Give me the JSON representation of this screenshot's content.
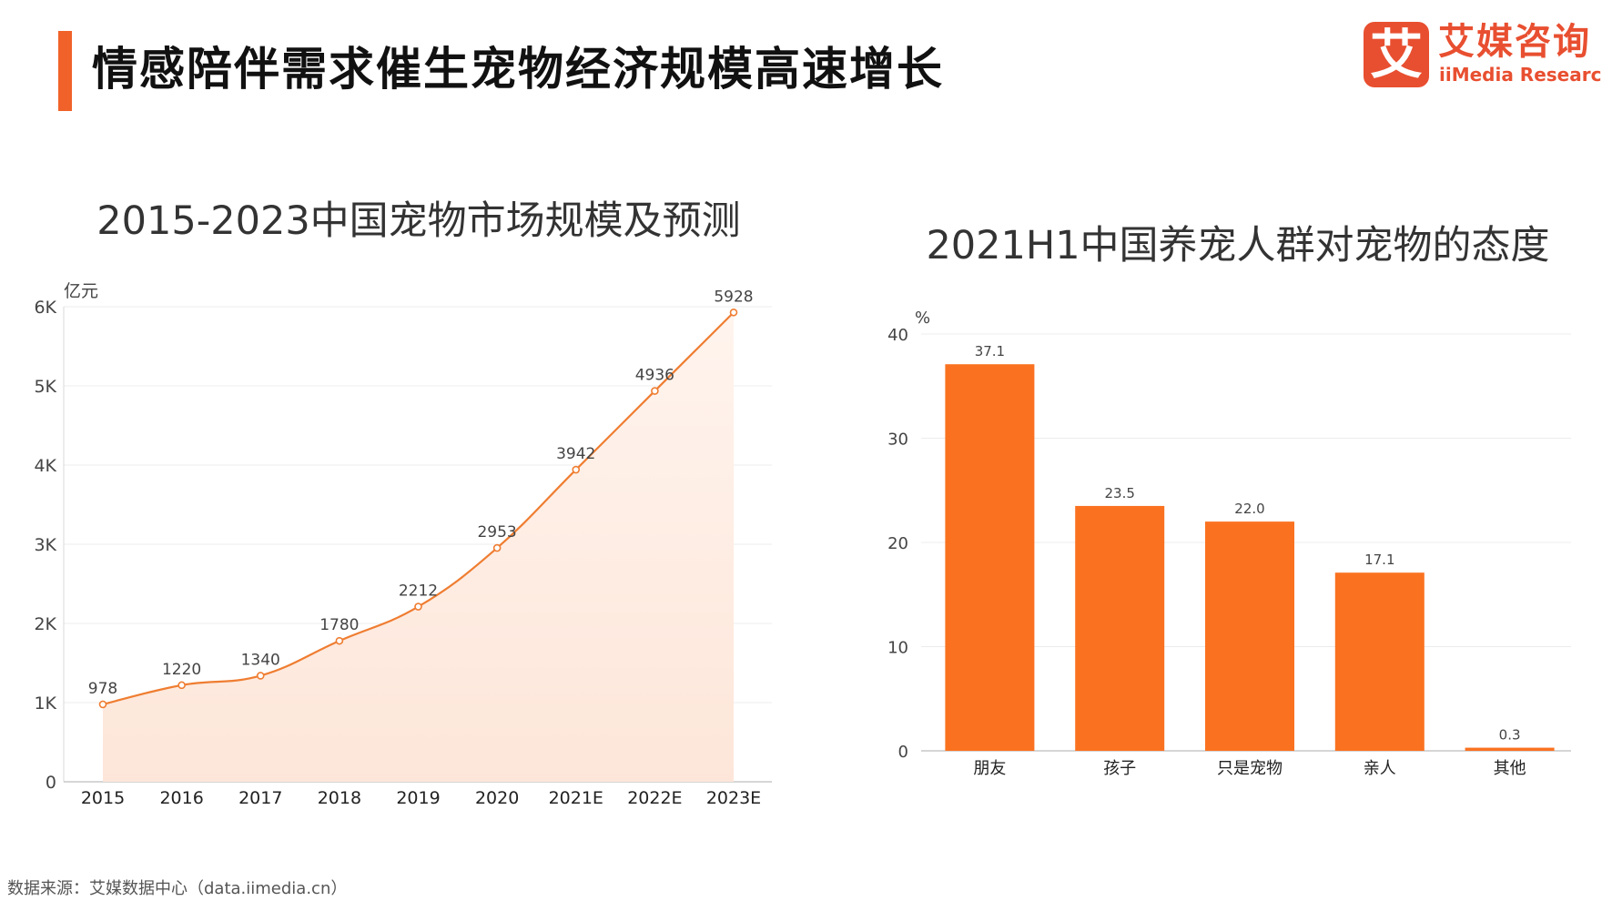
{
  "header": {
    "title": "情感陪伴需求催生宠物经济规模高速增长",
    "accent_color": "#f0622a"
  },
  "logo": {
    "mark": "艾",
    "cn": "艾媒咨询",
    "en": "iiMedia Research",
    "color": "#e84f30"
  },
  "chart_data": [
    {
      "type": "area",
      "title": "2015-2023中国宠物市场规模及预测",
      "ylabel": "亿元",
      "xlabel": "",
      "categories": [
        "2015",
        "2016",
        "2017",
        "2018",
        "2019",
        "2020",
        "2021E",
        "2022E",
        "2023E"
      ],
      "values": [
        978,
        1220,
        1340,
        1780,
        2212,
        2953,
        3942,
        4936,
        5928
      ],
      "data_labels": [
        "978",
        "1220",
        "1340",
        "1780",
        "2212",
        "2953",
        "3942",
        "4936",
        "5928"
      ],
      "ylim": [
        0,
        6000
      ],
      "yticks": [
        0,
        1000,
        2000,
        3000,
        4000,
        5000,
        6000
      ],
      "ytick_labels": [
        "0",
        "1K",
        "2K",
        "3K",
        "4K",
        "5K",
        "6K"
      ],
      "grid": true,
      "line_color": "#ef7d31",
      "fill_color": "#fde6d9"
    },
    {
      "type": "bar",
      "title": "2021H1中国养宠人群对宠物的态度",
      "ylabel": "%",
      "xlabel": "",
      "categories": [
        "朋友",
        "孩子",
        "只是宠物",
        "亲人",
        "其他"
      ],
      "values": [
        37.1,
        23.5,
        22.0,
        17.1,
        0.3
      ],
      "data_labels": [
        "37.1",
        "23.5",
        "22.0",
        "17.1",
        "0.3"
      ],
      "ylim": [
        0,
        40
      ],
      "yticks": [
        0,
        10,
        20,
        30,
        40
      ],
      "ytick_labels": [
        "0",
        "10",
        "20",
        "30",
        "40"
      ],
      "grid": true,
      "bar_color": "#fa7220"
    }
  ],
  "footer": {
    "source": "数据来源：艾媒数据中心（data.iimedia.cn）"
  }
}
